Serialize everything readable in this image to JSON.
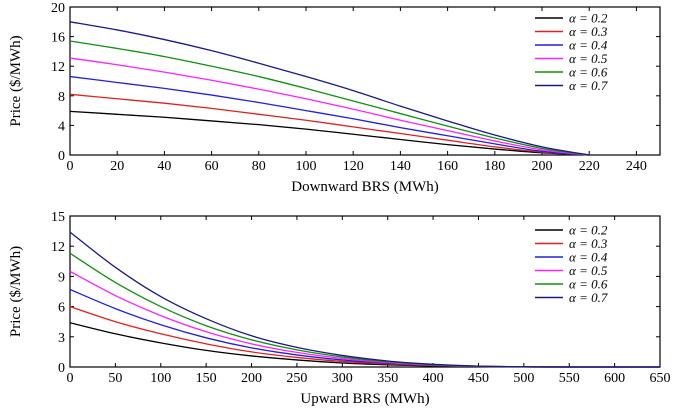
{
  "chart_data": [
    {
      "type": "line",
      "xlabel": "Downward BRS (MWh)",
      "ylabel": "Price ($/MWh)",
      "xlim": [
        0,
        250
      ],
      "ylim": [
        0,
        20
      ],
      "xticks": [
        0,
        20,
        40,
        60,
        80,
        100,
        120,
        140,
        160,
        180,
        200,
        220,
        240
      ],
      "yticks": [
        0,
        4,
        8,
        12,
        16,
        20
      ],
      "legend_position": "top-right",
      "series": [
        {
          "name": "α = 0.2",
          "color": "#000000",
          "x": [
            0,
            20,
            40,
            60,
            80,
            100,
            120,
            140,
            160,
            180,
            200,
            220
          ],
          "values": [
            5.9,
            5.5,
            5.1,
            4.6,
            4.1,
            3.5,
            2.8,
            2.1,
            1.4,
            0.8,
            0.3,
            0
          ]
        },
        {
          "name": "α = 0.3",
          "color": "#e02020",
          "x": [
            0,
            20,
            40,
            60,
            80,
            100,
            120,
            140,
            160,
            180,
            200,
            220
          ],
          "values": [
            8.2,
            7.6,
            7.0,
            6.3,
            5.5,
            4.7,
            3.8,
            2.9,
            2.0,
            1.1,
            0.4,
            0
          ]
        },
        {
          "name": "α = 0.4",
          "color": "#2020e0",
          "x": [
            0,
            20,
            40,
            60,
            80,
            100,
            120,
            140,
            160,
            180,
            200,
            220
          ],
          "values": [
            10.6,
            9.8,
            9.0,
            8.1,
            7.1,
            6.0,
            4.9,
            3.7,
            2.6,
            1.5,
            0.5,
            0
          ]
        },
        {
          "name": "α = 0.5",
          "color": "#ff20ff",
          "x": [
            0,
            20,
            40,
            60,
            80,
            100,
            120,
            140,
            160,
            180,
            200,
            220
          ],
          "values": [
            13.1,
            12.2,
            11.2,
            10.1,
            8.9,
            7.6,
            6.2,
            4.7,
            3.3,
            1.9,
            0.7,
            0
          ]
        },
        {
          "name": "α = 0.6",
          "color": "#109010",
          "x": [
            0,
            20,
            40,
            60,
            80,
            100,
            120,
            140,
            160,
            180,
            200,
            220
          ],
          "values": [
            15.4,
            14.4,
            13.3,
            12.0,
            10.6,
            9.0,
            7.3,
            5.6,
            3.9,
            2.3,
            0.9,
            0
          ]
        },
        {
          "name": "α = 0.7",
          "color": "#1a1a80",
          "x": [
            0,
            20,
            40,
            60,
            80,
            100,
            120,
            140,
            160,
            180,
            200,
            220
          ],
          "values": [
            18.0,
            16.9,
            15.6,
            14.1,
            12.4,
            10.6,
            8.7,
            6.6,
            4.6,
            2.7,
            1.1,
            0
          ]
        }
      ]
    },
    {
      "type": "line",
      "xlabel": "Upward BRS (MWh)",
      "ylabel": "Price ($/MWh)",
      "xlim": [
        0,
        650
      ],
      "ylim": [
        0,
        15
      ],
      "xticks": [
        0,
        50,
        100,
        150,
        200,
        250,
        300,
        350,
        400,
        450,
        500,
        550,
        600,
        650
      ],
      "yticks": [
        0,
        3,
        6,
        9,
        12,
        15
      ],
      "legend_position": "top-right",
      "series": [
        {
          "name": "α = 0.2",
          "color": "#000000",
          "x": [
            0,
            50,
            100,
            150,
            200,
            250,
            300,
            350,
            400,
            450,
            500,
            550,
            650
          ],
          "values": [
            4.4,
            3.3,
            2.4,
            1.65,
            1.1,
            0.7,
            0.4,
            0.22,
            0.1,
            0.04,
            0.01,
            0,
            0
          ]
        },
        {
          "name": "α = 0.3",
          "color": "#e02020",
          "x": [
            0,
            50,
            100,
            150,
            200,
            250,
            300,
            350,
            400,
            450,
            500,
            550,
            650
          ],
          "values": [
            6.0,
            4.5,
            3.3,
            2.3,
            1.5,
            0.95,
            0.55,
            0.3,
            0.14,
            0.05,
            0.01,
            0,
            0
          ]
        },
        {
          "name": "α = 0.4",
          "color": "#2020e0",
          "x": [
            0,
            50,
            100,
            150,
            200,
            250,
            300,
            350,
            400,
            450,
            500,
            550,
            650
          ],
          "values": [
            7.7,
            5.8,
            4.2,
            2.9,
            1.9,
            1.2,
            0.7,
            0.38,
            0.17,
            0.06,
            0.02,
            0,
            0
          ]
        },
        {
          "name": "α = 0.5",
          "color": "#ff20ff",
          "x": [
            0,
            50,
            100,
            150,
            200,
            250,
            300,
            350,
            400,
            450,
            500,
            550,
            650
          ],
          "values": [
            9.5,
            7.1,
            5.1,
            3.5,
            2.3,
            1.45,
            0.85,
            0.45,
            0.2,
            0.07,
            0.02,
            0,
            0
          ]
        },
        {
          "name": "α = 0.6",
          "color": "#109010",
          "x": [
            0,
            50,
            100,
            150,
            200,
            250,
            300,
            350,
            400,
            450,
            500,
            550,
            650
          ],
          "values": [
            11.3,
            8.4,
            6.0,
            4.1,
            2.7,
            1.7,
            1.0,
            0.52,
            0.23,
            0.08,
            0.02,
            0,
            0
          ]
        },
        {
          "name": "α = 0.7",
          "color": "#1a1a80",
          "x": [
            0,
            50,
            100,
            150,
            200,
            250,
            300,
            350,
            400,
            450,
            500,
            550,
            650
          ],
          "values": [
            13.4,
            9.9,
            7.0,
            4.8,
            3.1,
            1.95,
            1.15,
            0.6,
            0.27,
            0.09,
            0.02,
            0,
            0
          ]
        }
      ]
    }
  ]
}
